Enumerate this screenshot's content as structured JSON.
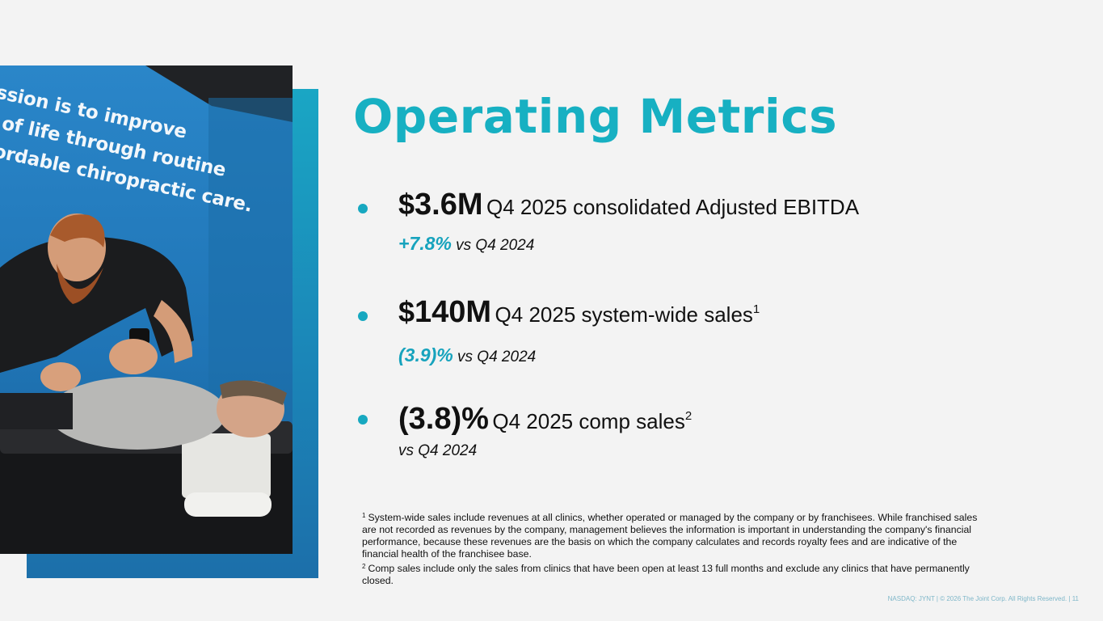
{
  "colors": {
    "accent": "#17b0c2",
    "background": "#f3f3f3"
  },
  "photo": {
    "icon": "chiropractor-photo",
    "mural_lines": [
      "ission is to improve",
      "y of life through routine",
      "ffordable chiropractic care."
    ]
  },
  "title": "Operating Metrics",
  "metrics": [
    {
      "currency": "$",
      "value": "3.6M",
      "description": "Q4 2025 consolidated Adjusted EBITDA",
      "footnote": "",
      "change": "+7.8%",
      "comparison": "vs Q4 2024"
    },
    {
      "currency": "$",
      "value": "140M",
      "description": "Q4 2025 system-wide sales",
      "footnote": "1",
      "change": "(3.9)%",
      "comparison": "vs Q4 2024"
    },
    {
      "currency": "",
      "value": "(3.8)%",
      "description": "Q4 2025 comp sales",
      "footnote": "2",
      "change": "",
      "comparison": "vs Q4 2024"
    }
  ],
  "footnotes": [
    {
      "marker": "1",
      "text": "System-wide sales include revenues at all clinics, whether operated or managed by the company or by franchisees. While franchised sales are not recorded as revenues by the company, management believes the information is important  in understanding the company's financial performance, because these revenues are the basis on which the company calculates and records royalty fees and are indicative of the financial health of the franchisee base."
    },
    {
      "marker": "2",
      "text": "Comp sales include only the sales from clinics that have been open at least 13 full months and exclude any clinics that have permanently closed."
    }
  ],
  "footer": "NASDAQ: JYNT   |  © 2026 The Joint Corp. All Rights Reserved. | 11"
}
